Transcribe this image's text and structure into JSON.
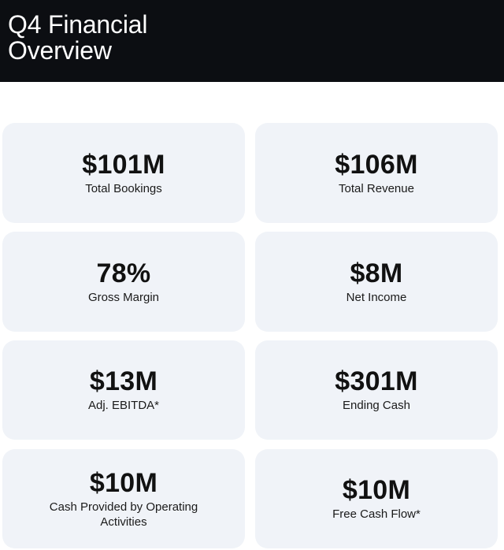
{
  "header": {
    "title": "Q4 Financial Overview"
  },
  "metrics": [
    {
      "value": "$101M",
      "label": "Total Bookings"
    },
    {
      "value": "$106M",
      "label": "Total Revenue"
    },
    {
      "value": "78%",
      "label": "Gross Margin"
    },
    {
      "value": "$8M",
      "label": "Net Income"
    },
    {
      "value": "$13M",
      "label": "Adj. EBITDA*"
    },
    {
      "value": "$301M",
      "label": "Ending Cash"
    },
    {
      "value": "$10M",
      "label": "Cash Provided by Operating Activities"
    },
    {
      "value": "$10M",
      "label": "Free Cash Flow*"
    }
  ],
  "colors": {
    "header_bg": "#0c0e12",
    "card_bg": "#f0f3f8"
  }
}
